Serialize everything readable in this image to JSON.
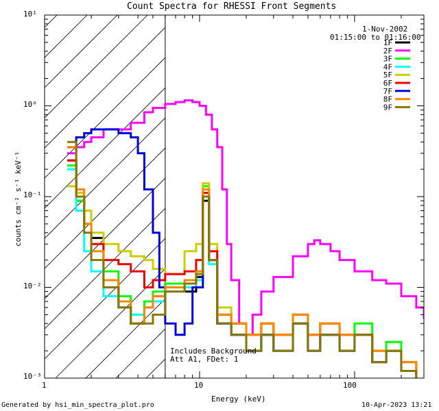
{
  "chart_data": {
    "type": "line",
    "title": "Count Spectra for RHESSI Front Segments",
    "xlabel": "Energy (keV)",
    "ylabel": "counts cm⁻² s⁻¹ keV⁻¹",
    "xscale": "log",
    "yscale": "log",
    "xlim": [
      1,
      280
    ],
    "ylim": [
      0.001,
      10
    ],
    "x_tick_labels": [
      "1",
      "10",
      "100"
    ],
    "y_tick_labels": [
      "10⁻³",
      "10⁻²",
      "10⁻¹",
      "10⁰",
      "10¹"
    ],
    "shaded_region": {
      "x_from": 1,
      "x_to": 6.0,
      "style": "diagonal-hatch"
    },
    "legend": {
      "date": "1-Nov-2002",
      "time": "01:15:00 to 01:16:00",
      "position": "top-right"
    },
    "annotations": [
      "Includes Background",
      "Att A1, FDet: 1"
    ],
    "series": [
      {
        "name": "1F",
        "color": "#000000",
        "x": [
          1.4,
          1.6,
          1.8,
          2.0,
          2.4,
          3.0,
          3.6,
          4.4,
          5.0,
          6.0,
          8.0,
          9.5,
          10.5,
          11.5,
          13,
          16,
          20,
          25,
          30,
          40,
          50,
          60,
          80,
          100,
          130,
          160,
          200,
          250
        ],
        "y": [
          0.25,
          0.09,
          0.05,
          0.035,
          0.012,
          0.006,
          0.004,
          0.006,
          0.008,
          0.01,
          0.009,
          0.013,
          0.09,
          0.02,
          0.004,
          0.003,
          0.002,
          0.003,
          0.002,
          0.004,
          0.002,
          0.003,
          0.002,
          0.003,
          0.0015,
          0.002,
          0.0012,
          0.001
        ]
      },
      {
        "name": "2F",
        "color": "#ff00ff",
        "x": [
          1.4,
          1.6,
          1.8,
          2.0,
          2.4,
          3.0,
          3.6,
          4.4,
          5.0,
          6.0,
          7.0,
          8.0,
          9.0,
          10,
          11,
          12,
          13,
          14,
          15,
          16,
          18,
          20,
          22,
          25,
          30,
          40,
          50,
          55,
          60,
          70,
          80,
          100,
          130,
          160,
          200,
          250,
          280
        ],
        "y": [
          0.3,
          0.35,
          0.4,
          0.45,
          0.55,
          0.55,
          0.65,
          0.85,
          0.95,
          1.05,
          1.1,
          1.15,
          1.1,
          1.0,
          0.8,
          0.55,
          0.35,
          0.12,
          0.03,
          0.012,
          0.004,
          0.003,
          0.005,
          0.009,
          0.013,
          0.022,
          0.03,
          0.033,
          0.03,
          0.025,
          0.02,
          0.015,
          0.012,
          0.011,
          0.008,
          0.006,
          0.0045
        ]
      },
      {
        "name": "3F",
        "color": "#00ff00",
        "x": [
          1.4,
          1.6,
          1.8,
          2.0,
          2.4,
          3.0,
          3.6,
          4.4,
          5.0,
          6.0,
          8.0,
          9.5,
          10.5,
          11.5,
          13,
          16,
          20,
          25,
          30,
          40,
          50,
          60,
          80,
          100,
          130,
          160,
          200,
          250
        ],
        "y": [
          0.22,
          0.09,
          0.05,
          0.03,
          0.015,
          0.008,
          0.005,
          0.007,
          0.009,
          0.011,
          0.012,
          0.015,
          0.13,
          0.02,
          0.005,
          0.004,
          0.003,
          0.004,
          0.003,
          0.005,
          0.003,
          0.004,
          0.003,
          0.004,
          0.002,
          0.0025,
          0.0015,
          0.001
        ]
      },
      {
        "name": "4F",
        "color": "#00ffff",
        "x": [
          1.4,
          1.6,
          1.8,
          2.0,
          2.4,
          3.0,
          3.6,
          4.4,
          5.0,
          6.0,
          8.0,
          9.5,
          10.5,
          11.5,
          13,
          16,
          20,
          25,
          30,
          40,
          50,
          60,
          80,
          100,
          130,
          160,
          200,
          250
        ],
        "y": [
          0.2,
          0.07,
          0.025,
          0.015,
          0.008,
          0.006,
          0.005,
          0.006,
          0.007,
          0.009,
          0.01,
          0.012,
          0.1,
          0.018,
          0.004,
          0.003,
          0.002,
          0.003,
          0.002,
          0.004,
          0.002,
          0.003,
          0.002,
          0.003,
          0.0015,
          0.002,
          0.0012,
          0.001
        ]
      },
      {
        "name": "5F",
        "color": "#cccc00",
        "x": [
          1.4,
          1.6,
          1.8,
          2.0,
          2.4,
          3.0,
          3.6,
          4.4,
          5.0,
          6.0,
          8.0,
          9.5,
          10.5,
          11.5,
          13,
          16,
          20,
          25,
          30,
          40,
          50,
          60,
          80,
          100,
          130,
          160,
          200,
          250
        ],
        "y": [
          0.13,
          0.11,
          0.07,
          0.04,
          0.03,
          0.025,
          0.022,
          0.02,
          0.016,
          0.014,
          0.025,
          0.03,
          0.14,
          0.03,
          0.006,
          0.004,
          0.003,
          0.004,
          0.003,
          0.005,
          0.003,
          0.004,
          0.003,
          0.003,
          0.002,
          0.002,
          0.0015,
          0.001
        ]
      },
      {
        "name": "6F",
        "color": "#ee0000",
        "x": [
          1.4,
          1.6,
          1.8,
          2.0,
          2.4,
          3.0,
          3.6,
          4.4,
          5.0,
          6.0,
          8.0,
          9.5,
          10.5,
          11.5,
          13,
          16,
          20,
          25,
          30,
          40,
          50,
          60,
          80,
          100,
          130,
          160,
          200,
          250
        ],
        "y": [
          0.25,
          0.1,
          0.05,
          0.03,
          0.02,
          0.018,
          0.015,
          0.01,
          0.012,
          0.014,
          0.015,
          0.02,
          0.11,
          0.025,
          0.005,
          0.004,
          0.003,
          0.004,
          0.003,
          0.005,
          0.003,
          0.004,
          0.003,
          0.003,
          0.002,
          0.002,
          0.0015,
          0.001
        ]
      },
      {
        "name": "7F",
        "color": "#0000dd",
        "x": [
          1.4,
          1.6,
          1.8,
          2.0,
          2.4,
          3.0,
          3.6,
          4.0,
          4.4,
          5.0,
          5.5,
          6.0,
          7.0,
          8.0,
          9.0,
          10.5,
          11.5,
          13,
          16,
          20,
          25,
          30,
          40,
          50,
          60,
          80,
          100,
          130,
          160,
          200,
          250
        ],
        "y": [
          0.35,
          0.45,
          0.5,
          0.55,
          0.55,
          0.5,
          0.45,
          0.3,
          0.12,
          0.04,
          0.01,
          0.004,
          0.003,
          0.004,
          0.01,
          0.1,
          0.02,
          0.004,
          0.003,
          0.002,
          0.003,
          0.002,
          0.004,
          0.002,
          0.003,
          0.002,
          0.003,
          0.0015,
          0.002,
          0.0012,
          0.001
        ]
      },
      {
        "name": "8F",
        "color": "#ff8800",
        "x": [
          1.4,
          1.6,
          1.8,
          2.0,
          2.4,
          3.0,
          3.6,
          4.4,
          5.0,
          6.0,
          8.0,
          9.5,
          10.5,
          11.5,
          13,
          16,
          20,
          25,
          30,
          40,
          50,
          60,
          80,
          100,
          130,
          160,
          200,
          250
        ],
        "y": [
          0.35,
          0.12,
          0.05,
          0.025,
          0.012,
          0.007,
          0.004,
          0.006,
          0.008,
          0.01,
          0.012,
          0.015,
          0.12,
          0.02,
          0.005,
          0.004,
          0.003,
          0.004,
          0.003,
          0.005,
          0.003,
          0.004,
          0.003,
          0.003,
          0.002,
          0.002,
          0.0015,
          0.001
        ]
      },
      {
        "name": "9F",
        "color": "#887700",
        "x": [
          1.4,
          1.6,
          1.8,
          2.0,
          2.4,
          3.0,
          3.6,
          4.4,
          5.0,
          6.0,
          8.0,
          9.5,
          10.5,
          11.5,
          13,
          16,
          20,
          25,
          30,
          40,
          50,
          60,
          80,
          100,
          130,
          160,
          200,
          250
        ],
        "y": [
          0.4,
          0.1,
          0.04,
          0.02,
          0.01,
          0.006,
          0.004,
          0.004,
          0.005,
          0.009,
          0.011,
          0.014,
          0.1,
          0.02,
          0.004,
          0.003,
          0.002,
          0.003,
          0.002,
          0.004,
          0.002,
          0.003,
          0.002,
          0.003,
          0.0015,
          0.002,
          0.0012,
          0.001
        ]
      }
    ]
  },
  "footer": {
    "left": "Generated by hsi_min_spectra_plot.pro",
    "right": "10-Apr-2023 13:21"
  }
}
